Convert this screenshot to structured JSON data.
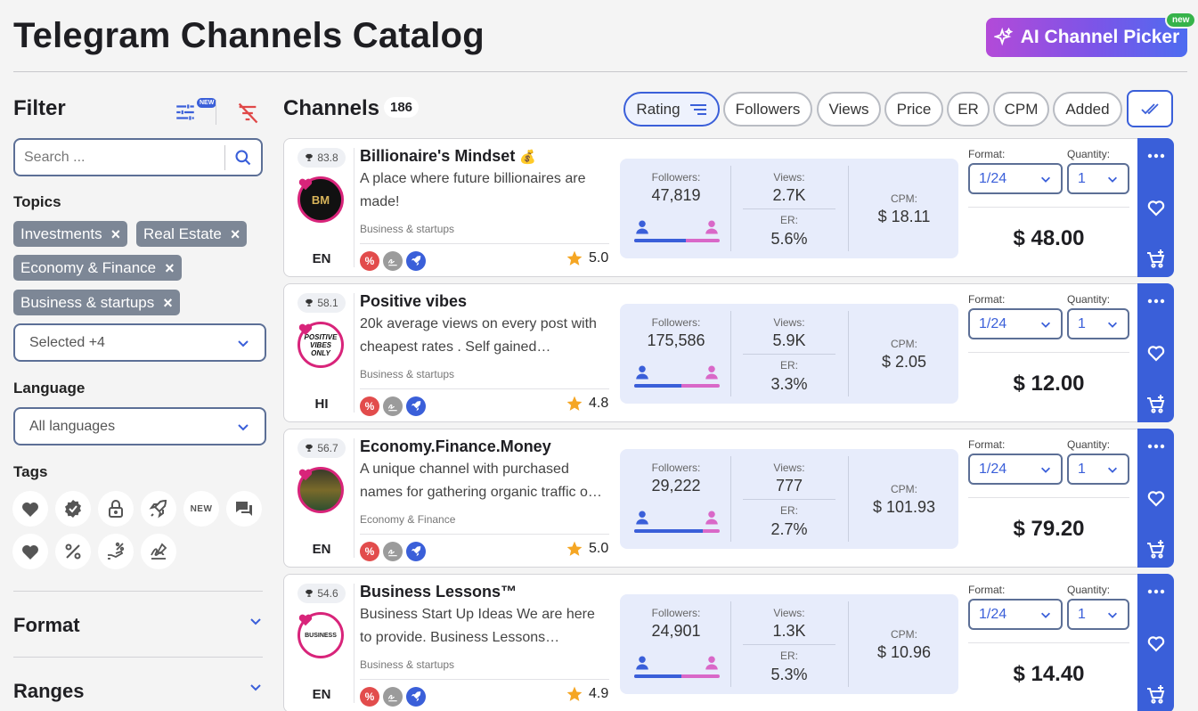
{
  "header": {
    "title": "Telegram Channels Catalog",
    "ai_button": "AI Channel Picker",
    "ai_badge": "new"
  },
  "filter": {
    "title": "Filter",
    "new_badge": "NEW",
    "search_placeholder": "Search ...",
    "topics_label": "Topics",
    "topics": [
      "Investments",
      "Real Estate",
      "Economy & Finance",
      "Business & startups"
    ],
    "topics_select": "Selected +4",
    "language_label": "Language",
    "language_value": "All languages",
    "tags_label": "Tags",
    "tags": [
      "heart-tag",
      "verified-tag",
      "lock-tag",
      "rocket-tag",
      "new-tag",
      "chat-tag",
      "heart-filled-tag",
      "percent-tag",
      "hand-percent-tag",
      "signature-tag"
    ],
    "tag_new_text": "NEW",
    "format_title": "Format",
    "ranges_title": "Ranges"
  },
  "channels": {
    "title": "Channels",
    "count": "186",
    "sort_options": [
      "Rating",
      "Followers",
      "Views",
      "Price",
      "ER",
      "CPM",
      "Added"
    ],
    "active_sort": "Rating"
  },
  "labels": {
    "followers": "Followers:",
    "views": "Views:",
    "er": "ER:",
    "cpm": "CPM:",
    "format": "Format:",
    "quantity": "Quantity:"
  },
  "cards": [
    {
      "rating": "83.8",
      "name": "Billionaire's Mindset",
      "emoji": "💰",
      "desc": "A place where future billionaires are made!",
      "category": "Business & startups",
      "lang": "EN",
      "stars": "5.0",
      "followers": "47,819",
      "views": "2.7K",
      "er": "5.6%",
      "cpm": "$ 18.11",
      "format": "1/24",
      "quantity": "1",
      "price": "$ 48.00",
      "male_pct": 60,
      "avatar_text": "BM"
    },
    {
      "rating": "58.1",
      "name": "Positive vibes",
      "emoji": "",
      "desc": "20k average views on every post with cheapest rates . Self gained…",
      "category": "Business & startups",
      "lang": "HI",
      "stars": "4.8",
      "followers": "175,586",
      "views": "5.9K",
      "er": "3.3%",
      "cpm": "$ 2.05",
      "format": "1/24",
      "quantity": "1",
      "price": "$ 12.00",
      "male_pct": 55,
      "avatar_text": "POSITIVE VIBES ONLY"
    },
    {
      "rating": "56.7",
      "name": "Economy.Finance.Money",
      "emoji": "",
      "desc": "A unique channel with purchased names for gathering organic traffic o…",
      "category": "Economy & Finance",
      "lang": "EN",
      "stars": "5.0",
      "followers": "29,222",
      "views": "777",
      "er": "2.7%",
      "cpm": "$ 101.93",
      "format": "1/24",
      "quantity": "1",
      "price": "$ 79.20",
      "male_pct": 80,
      "avatar_text": ""
    },
    {
      "rating": "54.6",
      "name": "Business Lessons™",
      "emoji": "",
      "desc": "Business Start Up Ideas We are here to provide. Business Lessons…",
      "category": "Business & startups",
      "lang": "EN",
      "stars": "4.9",
      "followers": "24,901",
      "views": "1.3K",
      "er": "5.3%",
      "cpm": "$ 10.96",
      "format": "1/24",
      "quantity": "1",
      "price": "$ 14.40",
      "male_pct": 55,
      "avatar_text": "BUSINESS"
    }
  ],
  "colors": {
    "accent": "#3a5fd9",
    "pink": "#d8247a",
    "chip": "#7d8796",
    "stats_bg": "#e7ecfb"
  }
}
